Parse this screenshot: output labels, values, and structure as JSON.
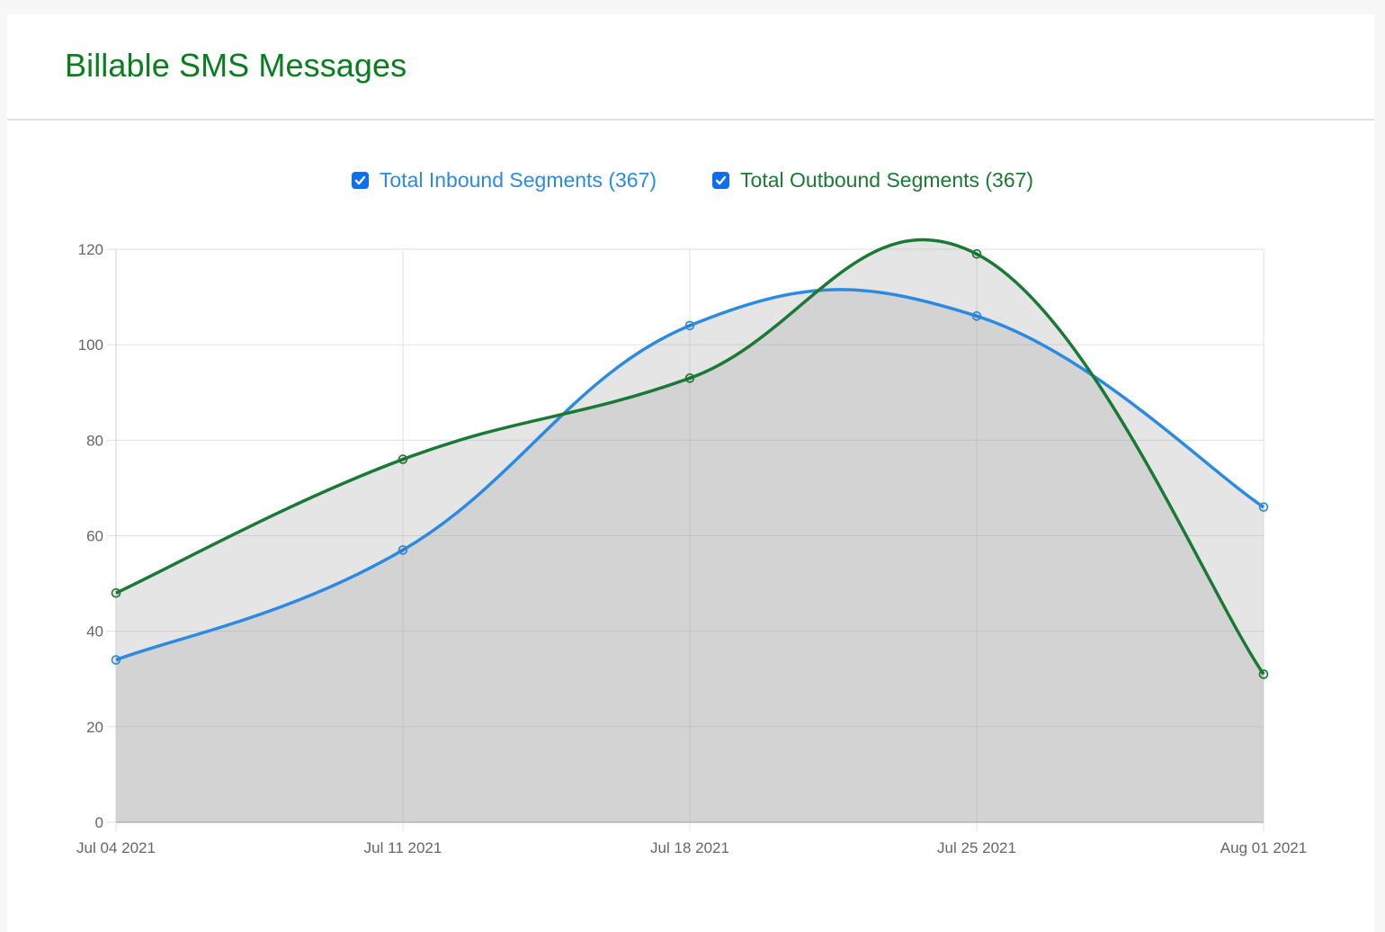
{
  "card": {
    "title": "Billable SMS Messages"
  },
  "legend": [
    {
      "label": "Total Inbound Segments (367)",
      "checked": true,
      "color": "#2a8be0"
    },
    {
      "label": "Total Outbound Segments (367)",
      "checked": true,
      "color": "#1a7a35"
    }
  ],
  "colors": {
    "title": "#0a7d1f",
    "inbound": "#2a8be0",
    "outbound": "#1a7a35",
    "fill_outer": "#e5e5e5",
    "fill_inner": "#cfcfcf",
    "grid": "#e0e0e0",
    "checkbox": "#0b6ef5"
  },
  "chart_data": {
    "type": "area",
    "title": "Billable SMS Messages",
    "categories": [
      "Jul 04 2021",
      "Jul 11 2021",
      "Jul 18 2021",
      "Jul 25 2021",
      "Aug 01 2021"
    ],
    "series": [
      {
        "name": "Total Inbound Segments",
        "total": 367,
        "values": [
          34,
          57,
          104,
          106,
          66
        ]
      },
      {
        "name": "Total Outbound Segments",
        "total": 367,
        "values": [
          48,
          76,
          93,
          119,
          31
        ]
      }
    ],
    "xlabel": "",
    "ylabel": "",
    "ylim": [
      0,
      120
    ],
    "yticks": [
      0,
      20,
      40,
      60,
      80,
      100,
      120
    ],
    "grid": true,
    "legend_position": "top",
    "smooth": true
  }
}
